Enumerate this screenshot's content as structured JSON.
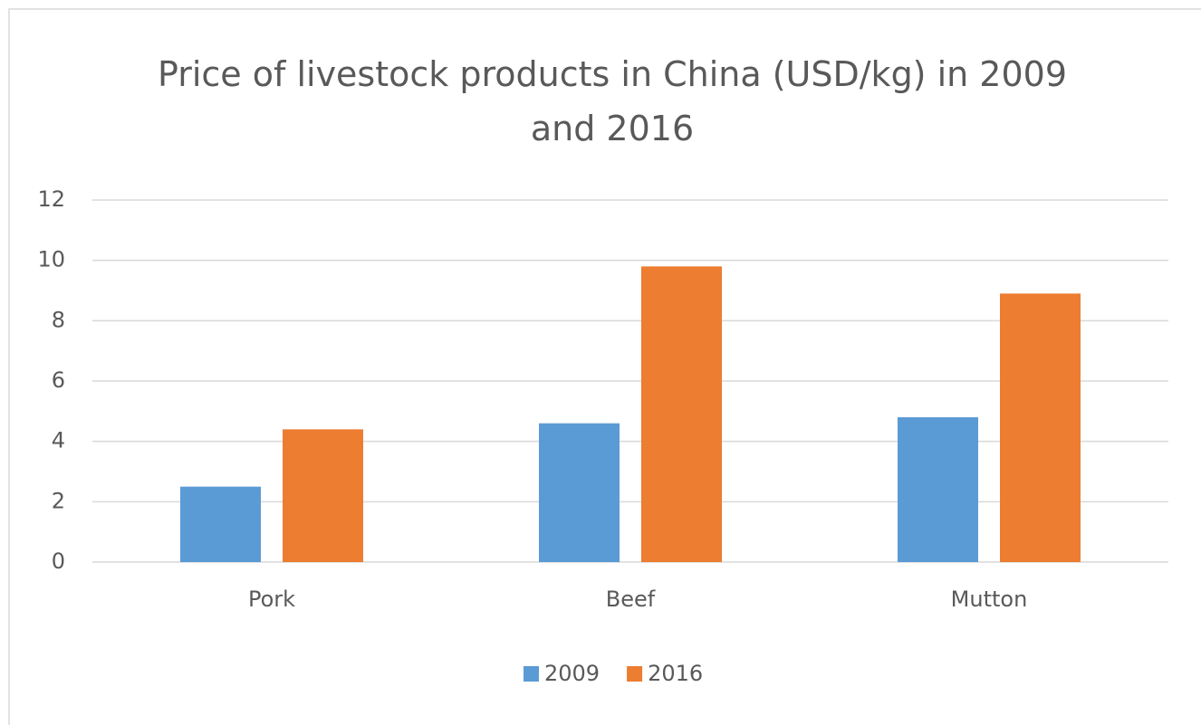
{
  "chart_data": {
    "type": "bar",
    "title": "Price of livestock products in China (USD/kg) in 2009 and 2016",
    "categories": [
      "Pork",
      "Beef",
      "Mutton"
    ],
    "series": [
      {
        "name": "2009",
        "color": "#5b9bd5",
        "values": [
          2.5,
          4.6,
          4.8
        ]
      },
      {
        "name": "2016",
        "color": "#ed7d31",
        "values": [
          4.4,
          9.8,
          8.9
        ]
      }
    ],
    "ylim": [
      0,
      12
    ],
    "yticks": [
      0,
      2,
      4,
      6,
      8,
      10,
      12
    ],
    "grid": true,
    "legend": "bottom"
  }
}
